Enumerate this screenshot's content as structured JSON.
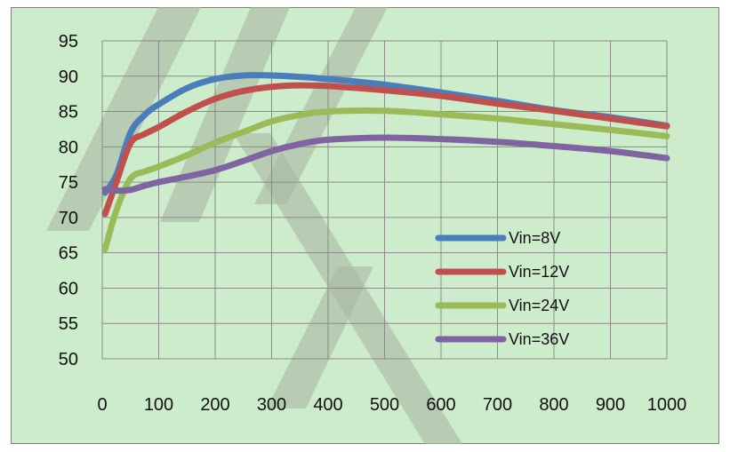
{
  "chart_data": {
    "type": "line",
    "title": "",
    "xlabel": "",
    "ylabel": "",
    "xlim": [
      0,
      1000
    ],
    "ylim": [
      50,
      95
    ],
    "x_ticks": [
      0,
      100,
      200,
      300,
      400,
      500,
      600,
      700,
      800,
      900,
      1000
    ],
    "y_ticks": [
      50,
      55,
      60,
      65,
      70,
      75,
      80,
      85,
      90,
      95
    ],
    "grid": true,
    "legend_position": "right-middle",
    "series": [
      {
        "name": "Vin=8V",
        "color": "#4a7ebb",
        "x": [
          5,
          25,
          50,
          75,
          100,
          150,
          200,
          250,
          300,
          350,
          400,
          500,
          600,
          700,
          800,
          900,
          1000
        ],
        "y": [
          73.5,
          76,
          82,
          84.5,
          86,
          88.3,
          89.6,
          90.1,
          90.1,
          89.9,
          89.6,
          88.8,
          87.7,
          86.5,
          85.2,
          84.2,
          83
        ]
      },
      {
        "name": "Vin=12V",
        "color": "#c0504d",
        "x": [
          5,
          25,
          50,
          75,
          100,
          150,
          200,
          250,
          300,
          350,
          400,
          500,
          600,
          700,
          800,
          900,
          1000
        ],
        "y": [
          70.5,
          75,
          80.5,
          81.8,
          82.8,
          85,
          86.8,
          87.9,
          88.5,
          88.7,
          88.6,
          88,
          87.2,
          86.1,
          85.1,
          84,
          82.9
        ]
      },
      {
        "name": "Vin=24V",
        "color": "#9bbb59",
        "x": [
          5,
          25,
          50,
          75,
          100,
          150,
          200,
          250,
          300,
          350,
          400,
          500,
          600,
          700,
          800,
          900,
          1000
        ],
        "y": [
          65.5,
          71,
          75.5,
          76.5,
          77.2,
          78.8,
          80.6,
          82.1,
          83.6,
          84.5,
          85,
          85.1,
          84.6,
          84,
          83.2,
          82.4,
          81.5
        ]
      },
      {
        "name": "Vin=36V",
        "color": "#8064a2",
        "x": [
          5,
          25,
          50,
          75,
          100,
          150,
          200,
          250,
          300,
          350,
          400,
          500,
          600,
          700,
          800,
          900,
          1000
        ],
        "y": [
          74,
          73.8,
          73.9,
          74.5,
          75,
          75.8,
          76.7,
          78,
          79.4,
          80.4,
          81,
          81.3,
          81.1,
          80.7,
          80.1,
          79.4,
          78.4
        ]
      }
    ]
  },
  "watermark": {
    "color": "#a9b7a3"
  }
}
